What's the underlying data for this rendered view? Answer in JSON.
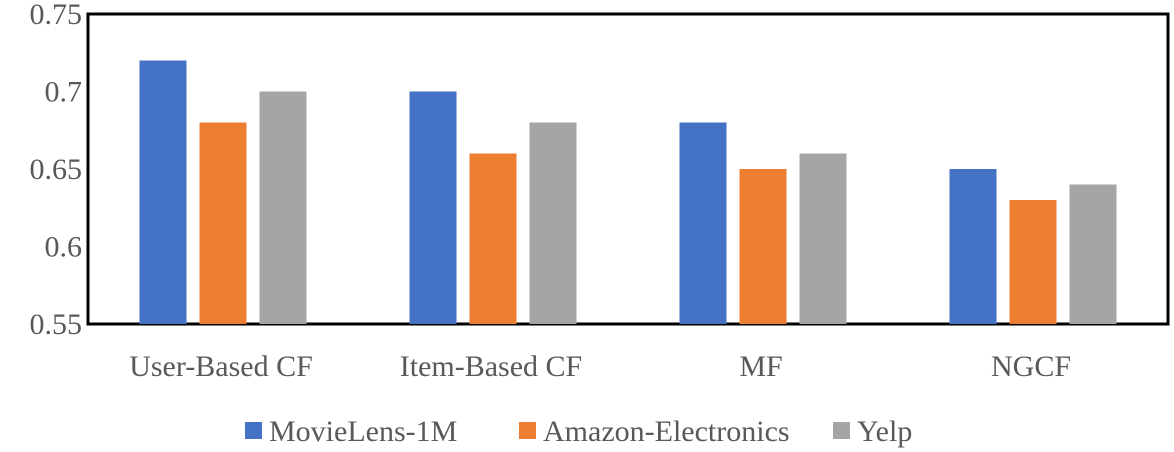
{
  "chart_data": {
    "type": "bar",
    "categories": [
      "User-Based CF",
      "Item-Based CF",
      "MF",
      "NGCF"
    ],
    "series": [
      {
        "name": "MovieLens-1M",
        "values": [
          0.72,
          0.7,
          0.68,
          0.65
        ],
        "color": "#4472C4"
      },
      {
        "name": "Amazon-Electronics",
        "values": [
          0.68,
          0.66,
          0.65,
          0.63
        ],
        "color": "#ED7D31"
      },
      {
        "name": "Yelp",
        "values": [
          0.7,
          0.68,
          0.66,
          0.64
        ],
        "color": "#A5A5A5"
      }
    ],
    "ylim": [
      0.55,
      0.75
    ],
    "yticks": [
      "0.55",
      "0.6",
      "0.65",
      "0.7",
      "0.75"
    ],
    "grid": false,
    "legend_position": "bottom"
  }
}
